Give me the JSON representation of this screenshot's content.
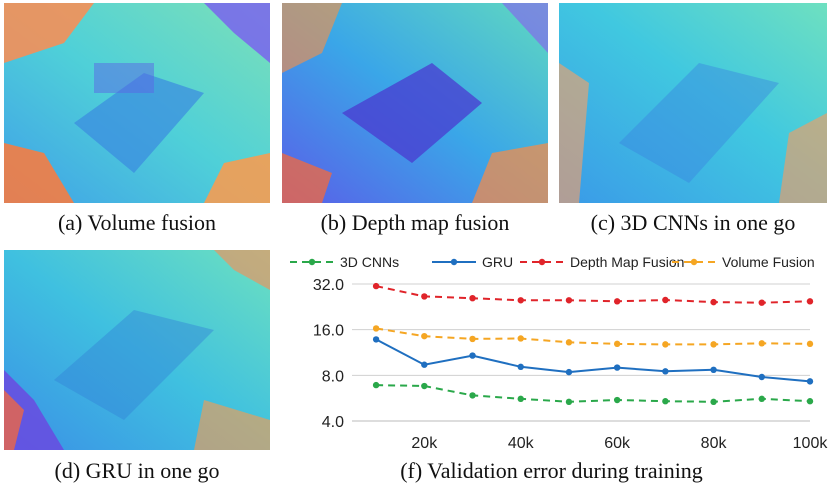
{
  "panels": [
    {
      "id": "a",
      "caption": "(a) Volume fusion"
    },
    {
      "id": "b",
      "caption": "(b) Depth map fusion"
    },
    {
      "id": "c",
      "caption": "(c) 3D CNNs in one go"
    },
    {
      "id": "d",
      "caption": "(d) GRU in one go"
    }
  ],
  "chart_caption": "(f) Validation error during training",
  "colors": {
    "3d_cnns": "#2aa84a",
    "gru": "#1f6fc0",
    "depth_map_fusion": "#e0242a",
    "volume_fusion": "#f5a623",
    "grid": "#d0d0d0"
  },
  "chart_data": {
    "type": "line",
    "title": "",
    "xlabel": "",
    "ylabel": "",
    "yscale": "log2",
    "ylim": [
      4.0,
      32.0
    ],
    "yticks": [
      "4.0",
      "8.0",
      "16.0",
      "32.0"
    ],
    "ytick_values": [
      4,
      8,
      16,
      32
    ],
    "xlim": [
      10000,
      100000
    ],
    "xticks": [
      "20k",
      "40k",
      "60k",
      "80k",
      "100k"
    ],
    "xtick_values": [
      20000,
      40000,
      60000,
      80000,
      100000
    ],
    "x": [
      10000,
      20000,
      30000,
      40000,
      50000,
      60000,
      70000,
      80000,
      90000,
      100000
    ],
    "legend_position": "top",
    "series": [
      {
        "name": "3D CNNs",
        "key": "3d_cnns",
        "dash": "dashed",
        "values": [
          6.9,
          6.8,
          5.9,
          5.6,
          5.35,
          5.5,
          5.4,
          5.35,
          5.6,
          5.4
        ]
      },
      {
        "name": "GRU",
        "key": "gru",
        "dash": "solid",
        "values": [
          13.8,
          9.4,
          10.8,
          9.1,
          8.4,
          9.0,
          8.5,
          8.7,
          7.8,
          7.3
        ]
      },
      {
        "name": "Depth Map Fusion",
        "key": "depth_map_fusion",
        "dash": "dashed",
        "values": [
          31.0,
          26.5,
          25.8,
          25.0,
          25.0,
          24.6,
          25.1,
          24.3,
          24.1,
          24.6
        ]
      },
      {
        "name": "Volume Fusion",
        "key": "volume_fusion",
        "dash": "dashed",
        "values": [
          16.3,
          14.5,
          13.9,
          14.0,
          13.2,
          12.9,
          12.8,
          12.8,
          13.0,
          12.9
        ]
      }
    ]
  }
}
